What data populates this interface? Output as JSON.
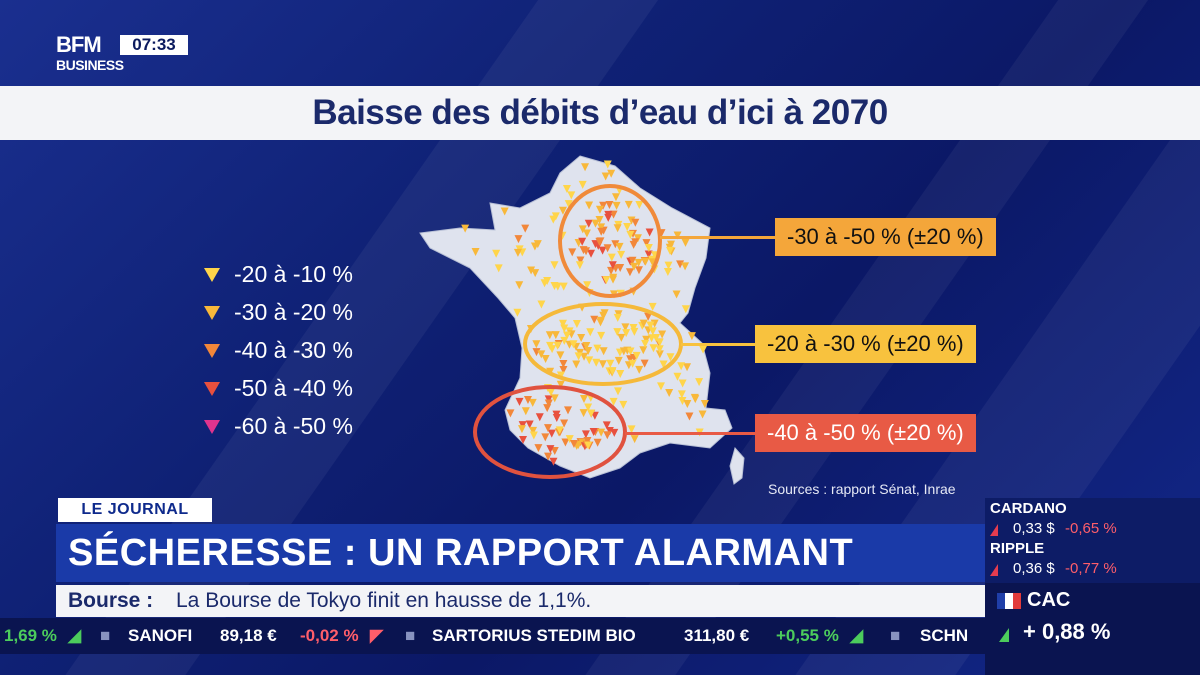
{
  "channel": {
    "logo_top": "BFM",
    "logo_bottom": "BUSINESS",
    "clock": "07:33"
  },
  "title": "Baisse des débits d’eau d’ici à 2070",
  "legend": [
    {
      "label": "-20 à -10 %",
      "color": "#ffd54a"
    },
    {
      "label": "-30 à -20 %",
      "color": "#f8b83a"
    },
    {
      "label": "-40 à -30 %",
      "color": "#f2873a"
    },
    {
      "label": "-50 à -40 %",
      "color": "#e8503e"
    },
    {
      "label": "-60 à -50 %",
      "color": "#e0348e"
    }
  ],
  "callouts": [
    {
      "text": "-30 à -50 % (±20 %)",
      "color": "#f4a63a"
    },
    {
      "text": "-20 à -30 % (±20 %)",
      "color": "#f8c23e"
    },
    {
      "text": "-40 à -50 % (±20 %)",
      "color": "#e85a45"
    }
  ],
  "sources": "Sources : rapport Sénat, Inrae",
  "journal_tag": "LE JOURNAL",
  "headline": "SÉCHERESSE : UN RAPPORT ALARMANT",
  "bourse": {
    "label": "Bourse :",
    "text": "La Bourse de Tokyo finit en hausse de 1,1%."
  },
  "ticker": [
    {
      "text": "1,69 %",
      "color": "#4ccc5c"
    },
    {
      "text": "SANOFI",
      "color": "#ffffff"
    },
    {
      "text": "89,18 €",
      "color": "#ffffff"
    },
    {
      "text": "-0,02 %",
      "color": "#ff5e6a"
    },
    {
      "text": "SARTORIUS STEDIM BIO",
      "color": "#ffffff"
    },
    {
      "text": "311,80 €",
      "color": "#ffffff"
    },
    {
      "text": "+0,55 %",
      "color": "#4ccc5c"
    },
    {
      "text": "SCHN",
      "color": "#ffffff"
    }
  ],
  "crypto": [
    {
      "name": "CARDANO",
      "value": "0,33 $",
      "change": "-0,65 %"
    },
    {
      "name": "RIPPLE",
      "value": "0,36 $",
      "change": "-0,77 %"
    }
  ],
  "index": {
    "name": "CAC",
    "change": "+ 0,88 %"
  }
}
